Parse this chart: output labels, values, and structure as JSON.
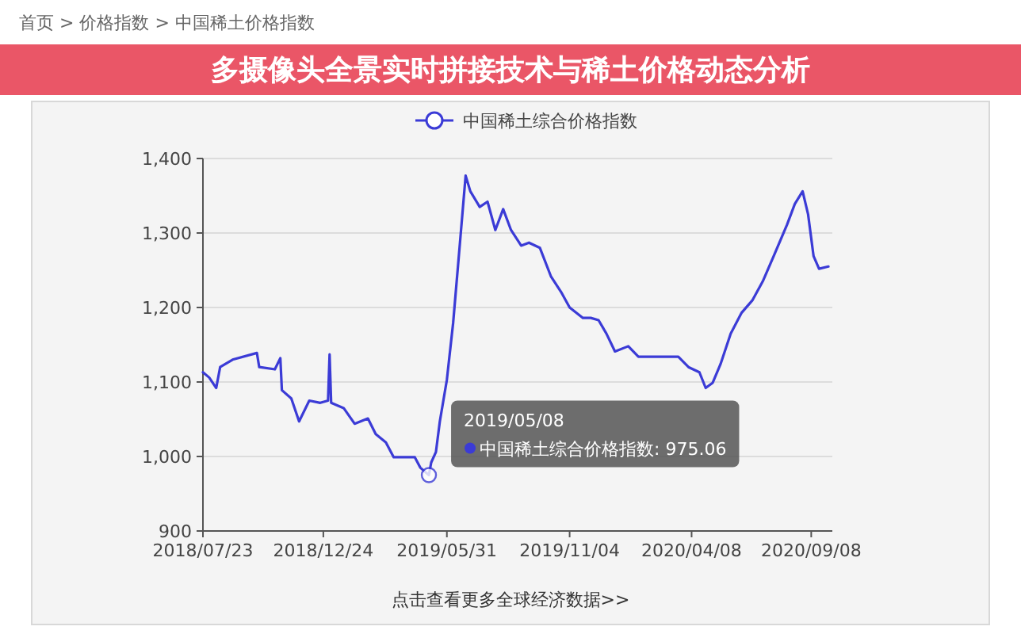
{
  "chart_data": {
    "type": "line",
    "title": "多摄像头全景实时拼接技术与稀土价格动态分析",
    "annotations": [
      "首页 > 价格指数 > 中国稀土价格指数",
      {
        "text": "2019/05/08\n中国稀土综合价格指数: 975.06",
        "x": "2019-05-08",
        "y": 975.06
      },
      "点击查看更多全球经济数据>>"
    ],
    "x": [
      "2018-07-23",
      "2018-07-31",
      "2018-08-09",
      "2018-08-14",
      "2018-08-30",
      "2018-09-30",
      "2018-10-03",
      "2018-10-23",
      "2018-10-30",
      "2018-11-01",
      "2018-11-13",
      "2018-11-23",
      "2018-12-06",
      "2018-12-20",
      "2018-12-30",
      "2019-01-01",
      "2019-01-03",
      "2019-01-19",
      "2019-02-02",
      "2019-02-19",
      "2019-03-01",
      "2019-03-14",
      "2019-03-24",
      "2019-04-07",
      "2019-04-20",
      "2019-04-27",
      "2019-05-08",
      "2019-05-11",
      "2019-05-17",
      "2019-05-22",
      "2019-05-31",
      "2019-06-08",
      "2019-06-17",
      "2019-06-24",
      "2019-06-30",
      "2019-07-12",
      "2019-07-22",
      "2019-08-01",
      "2019-08-11",
      "2019-08-21",
      "2019-09-03",
      "2019-09-13",
      "2019-09-27",
      "2019-10-11",
      "2019-10-24",
      "2019-11-04",
      "2019-11-21",
      "2019-12-01",
      "2019-12-11",
      "2019-12-21",
      "2020-01-01",
      "2020-01-18",
      "2020-01-31",
      "2020-02-27",
      "2020-03-22",
      "2020-04-04",
      "2020-04-18",
      "2020-04-26",
      "2020-05-05",
      "2020-05-15",
      "2020-05-28",
      "2020-06-11",
      "2020-06-25",
      "2020-07-08",
      "2020-07-22",
      "2020-08-08",
      "2020-08-18",
      "2020-08-28",
      "2020-09-04",
      "2020-09-11",
      "2020-09-18",
      "2020-09-30"
    ],
    "series": [
      {
        "name": "中国稀土综合价格指数",
        "color": "#3b3bd6",
        "values": [
          1113,
          1106,
          1092,
          1120,
          1130,
          1139,
          1120,
          1117,
          1132,
          1089,
          1078,
          1047,
          1075,
          1072,
          1075,
          1137,
          1072,
          1065,
          1044,
          1051,
          1030,
          1019,
          999,
          999,
          999,
          985,
          975.06,
          992,
          1006,
          1047,
          1103,
          1179,
          1290,
          1377,
          1356,
          1335,
          1342,
          1304,
          1332,
          1304,
          1283,
          1287,
          1280,
          1242,
          1221,
          1200,
          1186,
          1186,
          1183,
          1165,
          1141,
          1148,
          1134,
          1134,
          1134,
          1120,
          1113,
          1092,
          1099,
          1124,
          1165,
          1193,
          1210,
          1235,
          1269,
          1311,
          1339,
          1356,
          1325,
          1269,
          1252,
          1255
        ]
      }
    ],
    "xlim": [
      "2018-07-23",
      "2020-10-05"
    ],
    "xticks": [
      {
        "value": "2018-07-23",
        "label": "2018/07/23"
      },
      {
        "value": "2018-12-24",
        "label": "2018/12/24"
      },
      {
        "value": "2019-05-31",
        "label": "2019/05/31"
      },
      {
        "value": "2019-11-04",
        "label": "2019/11/04"
      },
      {
        "value": "2020-04-08",
        "label": "2020/04/08"
      },
      {
        "value": "2020-09-08",
        "label": "2020/09/08"
      }
    ],
    "ylim": [
      900,
      1400
    ],
    "yticks": [
      {
        "value": 900,
        "label": "900"
      },
      {
        "value": 1000,
        "label": "1,000"
      },
      {
        "value": 1100,
        "label": "1,100"
      },
      {
        "value": 1200,
        "label": "1,200"
      },
      {
        "value": 1300,
        "label": "1,300"
      },
      {
        "value": 1400,
        "label": "1,400"
      }
    ],
    "grid": "y",
    "legend": "top",
    "marker": "none",
    "line_style": "solid"
  }
}
